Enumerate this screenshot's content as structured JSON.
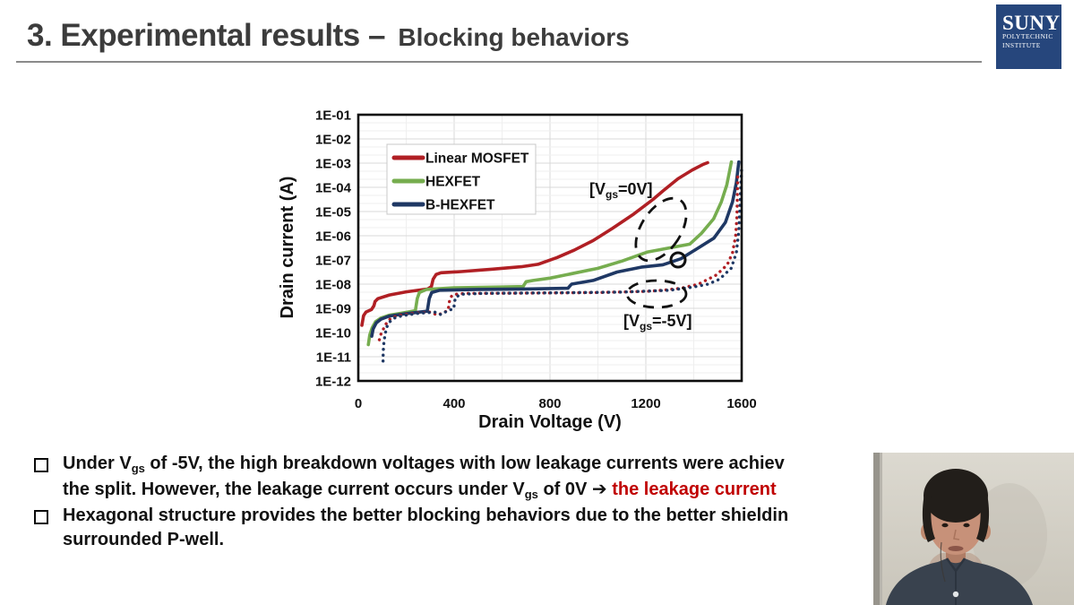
{
  "header": {
    "title_main": "3. Experimental results –",
    "title_sub": "Blocking behaviors"
  },
  "logo": {
    "line1": "SUNY",
    "line2": "POLYTECHNIC",
    "line3": "INSTITUTE",
    "bg_color": "#26467c"
  },
  "chart_data": {
    "type": "line",
    "title": "",
    "xlabel": "Drain Voltage (V)",
    "ylabel": "Drain current (A)",
    "xlim": [
      0,
      1600
    ],
    "x_ticks": [
      0,
      400,
      800,
      1200,
      1600
    ],
    "y_scale": "log",
    "y_tick_labels": [
      "1E-01",
      "1E-02",
      "1E-03",
      "1E-04",
      "1E-05",
      "1E-06",
      "1E-07",
      "1E-08",
      "1E-09",
      "1E-10",
      "1E-11",
      "1E-12"
    ],
    "y_tick_exponents": [
      -1,
      -2,
      -3,
      -4,
      -5,
      -6,
      -7,
      -8,
      -9,
      -10,
      -11,
      -12
    ],
    "grid": true,
    "legend": {
      "position": "top-left",
      "entries": [
        {
          "label": "Linear MOSFET",
          "color": "#b01f24"
        },
        {
          "label": "HEXFET",
          "color": "#76ad4f"
        },
        {
          "label": "B-HEXFET",
          "color": "#1f3864"
        }
      ]
    },
    "annotations": [
      {
        "id": "vgs-0v",
        "pre": "[V",
        "sub": "gs",
        "post": "=0V]"
      },
      {
        "id": "vgs-minus5v",
        "pre": "[V",
        "sub": "gs",
        "post": "=-5V]"
      }
    ],
    "series": [
      {
        "name": "Linear MOSFET",
        "vgs": "0V",
        "color": "#b01f24",
        "style": "solid",
        "points": [
          [
            15,
            -9.7
          ],
          [
            22,
            -9.3
          ],
          [
            32,
            -9.15
          ],
          [
            55,
            -9.05
          ],
          [
            65,
            -8.9
          ],
          [
            70,
            -8.72
          ],
          [
            82,
            -8.6
          ],
          [
            130,
            -8.45
          ],
          [
            200,
            -8.32
          ],
          [
            290,
            -8.2
          ],
          [
            305,
            -8.1
          ],
          [
            312,
            -7.8
          ],
          [
            325,
            -7.6
          ],
          [
            345,
            -7.53
          ],
          [
            430,
            -7.48
          ],
          [
            560,
            -7.38
          ],
          [
            680,
            -7.28
          ],
          [
            750,
            -7.18
          ],
          [
            830,
            -6.9
          ],
          [
            900,
            -6.6
          ],
          [
            980,
            -6.2
          ],
          [
            1060,
            -5.7
          ],
          [
            1150,
            -5.1
          ],
          [
            1230,
            -4.5
          ],
          [
            1271,
            -4.15
          ],
          [
            1334,
            -3.65
          ],
          [
            1394,
            -3.28
          ],
          [
            1440,
            -3.05
          ],
          [
            1458,
            -2.98
          ]
        ]
      },
      {
        "name": "HEXFET",
        "vgs": "0V",
        "color": "#76ad4f",
        "style": "solid",
        "points": [
          [
            42,
            -10.5
          ],
          [
            48,
            -10.1
          ],
          [
            58,
            -9.8
          ],
          [
            72,
            -9.55
          ],
          [
            95,
            -9.4
          ],
          [
            130,
            -9.28
          ],
          [
            180,
            -9.2
          ],
          [
            238,
            -9.1
          ],
          [
            246,
            -8.6
          ],
          [
            255,
            -8.35
          ],
          [
            285,
            -8.22
          ],
          [
            400,
            -8.15
          ],
          [
            600,
            -8.12
          ],
          [
            688,
            -8.1
          ],
          [
            700,
            -7.9
          ],
          [
            730,
            -7.85
          ],
          [
            800,
            -7.75
          ],
          [
            900,
            -7.55
          ],
          [
            1000,
            -7.35
          ],
          [
            1100,
            -7.05
          ],
          [
            1208,
            -6.67
          ],
          [
            1300,
            -6.5
          ],
          [
            1383,
            -6.35
          ],
          [
            1432,
            -5.9
          ],
          [
            1483,
            -5.3
          ],
          [
            1515,
            -4.6
          ],
          [
            1538,
            -3.9
          ],
          [
            1552,
            -3.2
          ],
          [
            1557,
            -2.95
          ]
        ]
      },
      {
        "name": "B-HEXFET",
        "vgs": "0V",
        "color": "#1f3864",
        "style": "solid",
        "points": [
          [
            56,
            -10.15
          ],
          [
            62,
            -9.85
          ],
          [
            75,
            -9.6
          ],
          [
            95,
            -9.45
          ],
          [
            130,
            -9.32
          ],
          [
            200,
            -9.22
          ],
          [
            288,
            -9.12
          ],
          [
            296,
            -8.6
          ],
          [
            306,
            -8.35
          ],
          [
            340,
            -8.25
          ],
          [
            500,
            -8.22
          ],
          [
            700,
            -8.2
          ],
          [
            875,
            -8.17
          ],
          [
            890,
            -8.0
          ],
          [
            980,
            -7.85
          ],
          [
            1080,
            -7.5
          ],
          [
            1180,
            -7.3
          ],
          [
            1271,
            -7.2
          ],
          [
            1346,
            -6.95
          ],
          [
            1420,
            -6.5
          ],
          [
            1484,
            -6.1
          ],
          [
            1532,
            -5.45
          ],
          [
            1562,
            -4.6
          ],
          [
            1578,
            -3.8
          ],
          [
            1586,
            -3.1
          ],
          [
            1588,
            -2.95
          ]
        ]
      },
      {
        "name": "Linear MOSFET",
        "vgs": "-5V",
        "color": "#b01f24",
        "style": "dotted",
        "points": [
          [
            88,
            -10.3
          ],
          [
            95,
            -10.05
          ],
          [
            105,
            -9.85
          ],
          [
            118,
            -9.6
          ],
          [
            135,
            -9.42
          ],
          [
            165,
            -9.3
          ],
          [
            220,
            -9.22
          ],
          [
            300,
            -9.15
          ],
          [
            330,
            -9.28
          ],
          [
            355,
            -9.18
          ],
          [
            375,
            -9.08
          ],
          [
            382,
            -8.6
          ],
          [
            393,
            -8.45
          ],
          [
            420,
            -8.4
          ],
          [
            460,
            -8.38
          ],
          [
            700,
            -8.37
          ],
          [
            1000,
            -8.35
          ],
          [
            1200,
            -8.3
          ],
          [
            1271,
            -8.25
          ],
          [
            1346,
            -8.17
          ],
          [
            1420,
            -8.0
          ],
          [
            1495,
            -7.62
          ],
          [
            1540,
            -7.2
          ],
          [
            1562,
            -6.7
          ],
          [
            1575,
            -6.0
          ],
          [
            1580,
            -5.2
          ],
          [
            1582,
            -4.2
          ],
          [
            1584,
            -3.35
          ]
        ]
      },
      {
        "name": "B-HEXFET",
        "vgs": "-5V",
        "color": "#1f3864",
        "style": "dotted",
        "points": [
          [
            103,
            -11.3
          ],
          [
            104,
            -10.8
          ],
          [
            107,
            -10.4
          ],
          [
            112,
            -10.05
          ],
          [
            120,
            -9.75
          ],
          [
            132,
            -9.55
          ],
          [
            152,
            -9.4
          ],
          [
            185,
            -9.3
          ],
          [
            255,
            -9.2
          ],
          [
            320,
            -9.16
          ],
          [
            345,
            -9.26
          ],
          [
            372,
            -9.1
          ],
          [
            398,
            -9.02
          ],
          [
            405,
            -8.55
          ],
          [
            428,
            -8.42
          ],
          [
            520,
            -8.38
          ],
          [
            800,
            -8.36
          ],
          [
            1100,
            -8.33
          ],
          [
            1300,
            -8.25
          ],
          [
            1400,
            -8.12
          ],
          [
            1460,
            -8.0
          ],
          [
            1507,
            -7.8
          ],
          [
            1556,
            -7.35
          ],
          [
            1578,
            -6.7
          ],
          [
            1588,
            -5.8
          ],
          [
            1593,
            -4.8
          ],
          [
            1597,
            -3.8
          ],
          [
            1600,
            -3.2
          ]
        ]
      }
    ]
  },
  "bullets": [
    {
      "lines": [
        [
          {
            "t": "Under V"
          },
          {
            "t": "gs",
            "sub": true
          },
          {
            "t": " of -5V, the high breakdown voltages with low leakage currents were achiev"
          }
        ],
        [
          {
            "t": "the split. However, the leakage current occurs under V"
          },
          {
            "t": "gs",
            "sub": true
          },
          {
            "t": " of 0V "
          },
          {
            "t": "➔",
            "arrow": true
          },
          {
            "t": " "
          },
          {
            "t": "the leakage current",
            "red": true
          }
        ]
      ]
    },
    {
      "lines": [
        [
          {
            "t": "Hexagonal structure provides the better blocking behaviors due to the better shieldin"
          }
        ],
        [
          {
            "t": "surrounded P-well."
          }
        ]
      ]
    }
  ],
  "colors": {
    "accent_red_text": "#c00000",
    "title_text": "#3c3c3c",
    "grid_major": "#d9d9d9",
    "grid_minor": "#efefef"
  }
}
